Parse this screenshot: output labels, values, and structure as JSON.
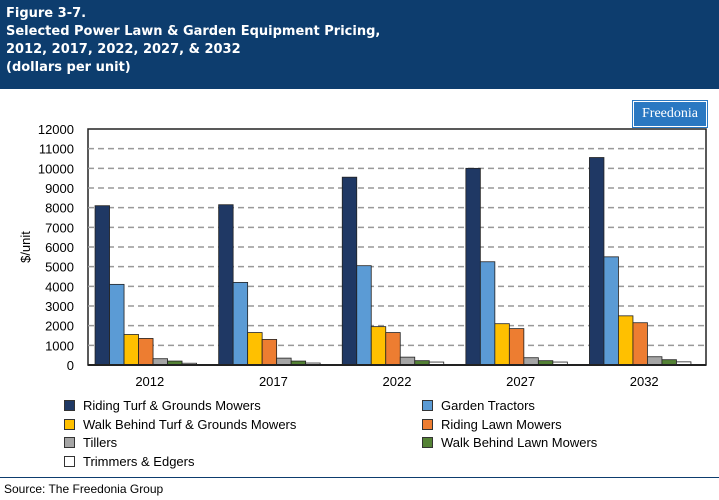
{
  "header": {
    "lines": [
      "Figure 3-7.",
      "Selected Power Lawn & Garden Equipment Pricing,",
      "2012, 2017, 2022, 2027, & 2032",
      "(dollars per unit)"
    ]
  },
  "logo": "Freedonia",
  "source": "Source: The Freedonia Group",
  "chart_data": {
    "type": "bar",
    "title": "",
    "xlabel": "",
    "ylabel": "$/unit",
    "ylim": [
      0,
      12000
    ],
    "yticks": [
      0,
      1000,
      2000,
      3000,
      4000,
      5000,
      6000,
      7000,
      8000,
      9000,
      10000,
      11000,
      12000
    ],
    "grid": true,
    "legend_placement": "bottom",
    "categories": [
      "2012",
      "2017",
      "2022",
      "2027",
      "2032"
    ],
    "series": [
      {
        "name": "Riding Turf & Grounds Mowers",
        "color": "#1f3864",
        "values": [
          8100,
          8150,
          9550,
          10000,
          10550
        ]
      },
      {
        "name": "Garden Tractors",
        "color": "#5b9bd5",
        "values": [
          4100,
          4200,
          5050,
          5250,
          5500
        ]
      },
      {
        "name": "Walk Behind Turf & Grounds Mowers",
        "color": "#ffc000",
        "values": [
          1550,
          1650,
          1950,
          2100,
          2500
        ]
      },
      {
        "name": "Riding Lawn Mowers",
        "color": "#ed7d31",
        "values": [
          1350,
          1300,
          1650,
          1850,
          2150
        ]
      },
      {
        "name": "Tillers",
        "color": "#a5a5a5",
        "values": [
          320,
          350,
          400,
          370,
          420
        ]
      },
      {
        "name": "Walk Behind Lawn Mowers",
        "color": "#548235",
        "values": [
          200,
          200,
          220,
          220,
          270
        ]
      },
      {
        "name": "Trimmers & Edgers",
        "color": "#ffffff",
        "values": [
          90,
          100,
          150,
          150,
          160
        ]
      }
    ]
  }
}
